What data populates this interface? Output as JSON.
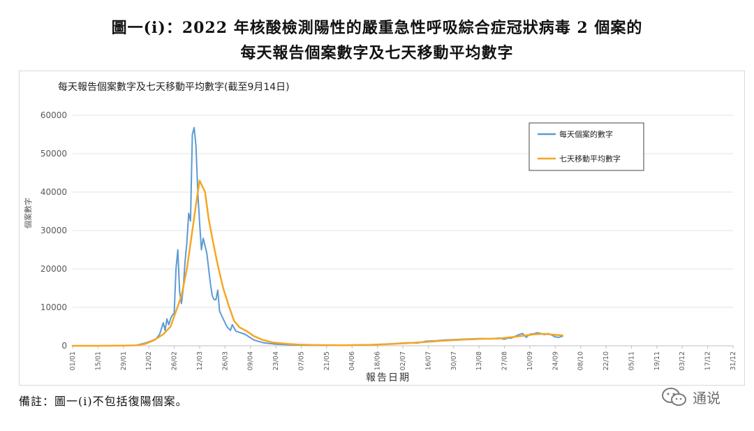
{
  "title_line1": "圖一(i)：2022 年核酸檢測陽性的嚴重急性呼吸綜合症冠狀病毒 2 個案的",
  "title_line2": "每天報告個案數字及七天移動平均數字",
  "footnote": "備註：圖一(i)不包括復陽個案。",
  "watermark": "通说",
  "chart_data": {
    "type": "line",
    "title": "每天報告個案數字及七天移動平均數字(截至9月14日)",
    "xlabel": "報告日期",
    "ylabel": "個案數字",
    "ylim": [
      0,
      60000
    ],
    "yticks": [
      "0",
      "10000",
      "20000",
      "30000",
      "40000",
      "50000",
      "60000"
    ],
    "xticks": [
      "01/01",
      "15/01",
      "29/01",
      "12/02",
      "26/02",
      "12/03",
      "26/03",
      "09/04",
      "23/04",
      "07/05",
      "21/05",
      "04/06",
      "18/06",
      "02/07",
      "16/07",
      "30/07",
      "13/08",
      "27/08",
      "10/09",
      "24/09",
      "08/10",
      "22/10",
      "05/11",
      "19/11",
      "03/12",
      "17/12",
      "31/12"
    ],
    "grid": true,
    "legend_position": "top-right",
    "colors": {
      "daily": "#5b9bd5",
      "avg": "#f5a623"
    },
    "series": [
      {
        "name": "每天個案的數字",
        "color": "#5b9bd5",
        "points": [
          [
            0,
            0
          ],
          [
            14,
            0
          ],
          [
            28,
            50
          ],
          [
            35,
            150
          ],
          [
            40,
            700
          ],
          [
            43,
            1200
          ],
          [
            46,
            1800
          ],
          [
            48,
            3000
          ],
          [
            50,
            6000
          ],
          [
            51,
            4000
          ],
          [
            52,
            7000
          ],
          [
            53,
            5500
          ],
          [
            54,
            7000
          ],
          [
            55,
            8000
          ],
          [
            56,
            8500
          ],
          [
            57,
            20000
          ],
          [
            58,
            25000
          ],
          [
            59,
            14000
          ],
          [
            60,
            11000
          ],
          [
            61,
            15000
          ],
          [
            62,
            22000
          ],
          [
            63,
            27000
          ],
          [
            64,
            34500
          ],
          [
            65,
            32500
          ],
          [
            66,
            55000
          ],
          [
            67,
            56800
          ],
          [
            68,
            52000
          ],
          [
            69,
            40000
          ],
          [
            70,
            32000
          ],
          [
            71,
            25000
          ],
          [
            72,
            28000
          ],
          [
            73,
            26000
          ],
          [
            74,
            24000
          ],
          [
            75,
            20000
          ],
          [
            76,
            16000
          ],
          [
            77,
            13000
          ],
          [
            78,
            12000
          ],
          [
            79,
            12000
          ],
          [
            80,
            14500
          ],
          [
            81,
            9000
          ],
          [
            83,
            7000
          ],
          [
            85,
            5000
          ],
          [
            87,
            4000
          ],
          [
            88,
            5500
          ],
          [
            90,
            3800
          ],
          [
            95,
            3000
          ],
          [
            100,
            1500
          ],
          [
            105,
            800
          ],
          [
            112,
            400
          ],
          [
            120,
            250
          ],
          [
            130,
            150
          ],
          [
            140,
            100
          ],
          [
            155,
            200
          ],
          [
            165,
            300
          ],
          [
            175,
            500
          ],
          [
            185,
            800
          ],
          [
            190,
            700
          ],
          [
            195,
            1200
          ],
          [
            200,
            1300
          ],
          [
            205,
            1500
          ],
          [
            210,
            1600
          ],
          [
            215,
            1700
          ],
          [
            220,
            1800
          ],
          [
            225,
            1900
          ],
          [
            230,
            1800
          ],
          [
            235,
            2000
          ],
          [
            238,
            1700
          ],
          [
            240,
            2000
          ],
          [
            242,
            2000
          ],
          [
            244,
            2500
          ],
          [
            246,
            2900
          ],
          [
            248,
            3200
          ],
          [
            250,
            2200
          ],
          [
            252,
            3000
          ],
          [
            254,
            3100
          ],
          [
            256,
            3400
          ],
          [
            258,
            3200
          ],
          [
            260,
            2900
          ],
          [
            262,
            3200
          ],
          [
            264,
            2800
          ],
          [
            266,
            2300
          ],
          [
            268,
            2200
          ],
          [
            270,
            2500
          ]
        ]
      },
      {
        "name": "七天移動平均數字",
        "color": "#f5a623",
        "points": [
          [
            0,
            0
          ],
          [
            14,
            0
          ],
          [
            28,
            30
          ],
          [
            35,
            100
          ],
          [
            40,
            500
          ],
          [
            45,
            1500
          ],
          [
            50,
            3000
          ],
          [
            54,
            5000
          ],
          [
            57,
            9000
          ],
          [
            60,
            13000
          ],
          [
            63,
            20000
          ],
          [
            66,
            30000
          ],
          [
            69,
            40000
          ],
          [
            70,
            43000
          ],
          [
            73,
            40000
          ],
          [
            75,
            33000
          ],
          [
            77,
            28000
          ],
          [
            80,
            21000
          ],
          [
            83,
            15000
          ],
          [
            86,
            10500
          ],
          [
            89,
            6500
          ],
          [
            92,
            4800
          ],
          [
            96,
            3800
          ],
          [
            100,
            2500
          ],
          [
            105,
            1500
          ],
          [
            110,
            900
          ],
          [
            118,
            500
          ],
          [
            125,
            300
          ],
          [
            135,
            180
          ],
          [
            150,
            150
          ],
          [
            165,
            250
          ],
          [
            175,
            450
          ],
          [
            185,
            700
          ],
          [
            195,
            1000
          ],
          [
            205,
            1350
          ],
          [
            215,
            1600
          ],
          [
            225,
            1800
          ],
          [
            235,
            1900
          ],
          [
            245,
            2400
          ],
          [
            250,
            2700
          ],
          [
            255,
            3000
          ],
          [
            260,
            3100
          ],
          [
            265,
            2900
          ],
          [
            270,
            2700
          ]
        ]
      }
    ]
  }
}
